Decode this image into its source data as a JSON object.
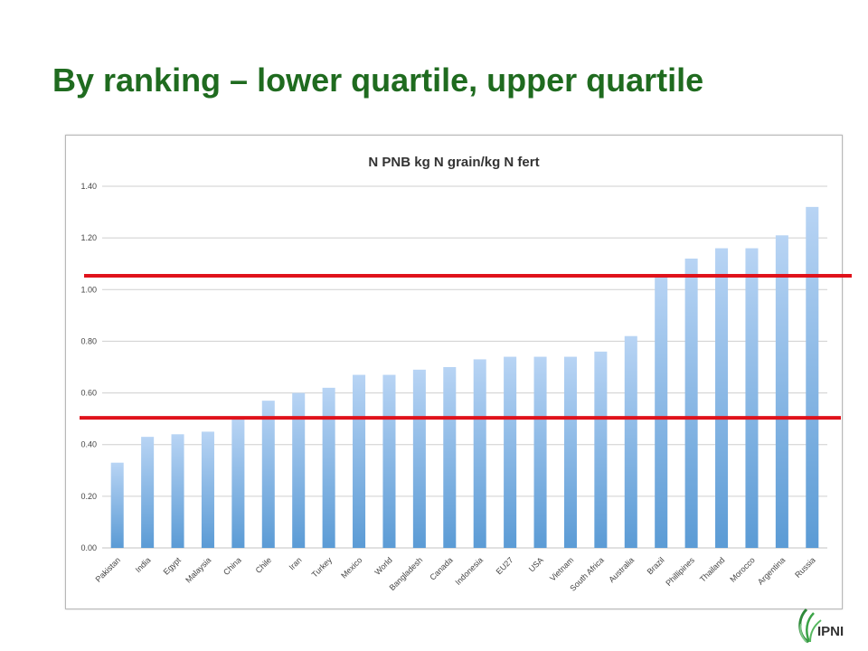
{
  "slide": {
    "title": "By ranking – lower quartile, upper quartile"
  },
  "logo": {
    "text": "IPNI",
    "icon": "ipni-leaf-icon"
  },
  "colors": {
    "title": "#1f6b1f",
    "bar_top": "#b8d4f4",
    "bar_bottom": "#5b9bd5",
    "quartile_line": "#e0121b",
    "grid": "#cfcfcf"
  },
  "chart_data": {
    "type": "bar",
    "title": "N PNB kg N grain/kg N fert",
    "xlabel": "",
    "ylabel": "",
    "ylim": [
      0,
      1.4
    ],
    "yticks": [
      "0.00",
      "0.20",
      "0.40",
      "0.60",
      "0.80",
      "1.00",
      "1.20",
      "1.40"
    ],
    "grid": true,
    "legend": "none",
    "categories": [
      "Pakistan",
      "India",
      "Egypt",
      "Malaysia",
      "China",
      "Chile",
      "Iran",
      "Turkey",
      "Mexico",
      "World",
      "Bangladesh",
      "Canada",
      "Indonesia",
      "EU27",
      "USA",
      "Vietnam",
      "South Africa",
      "Australia",
      "Brazil",
      "Phillipines",
      "Thailand",
      "Morocco",
      "Argentina",
      "Russia"
    ],
    "values": [
      0.33,
      0.43,
      0.44,
      0.45,
      0.5,
      0.57,
      0.6,
      0.62,
      0.67,
      0.67,
      0.69,
      0.7,
      0.73,
      0.74,
      0.74,
      0.74,
      0.76,
      0.82,
      1.06,
      1.12,
      1.16,
      1.16,
      1.21,
      1.32
    ],
    "reference_lines": [
      {
        "value": 1.05
      },
      {
        "value": 0.5
      }
    ]
  }
}
